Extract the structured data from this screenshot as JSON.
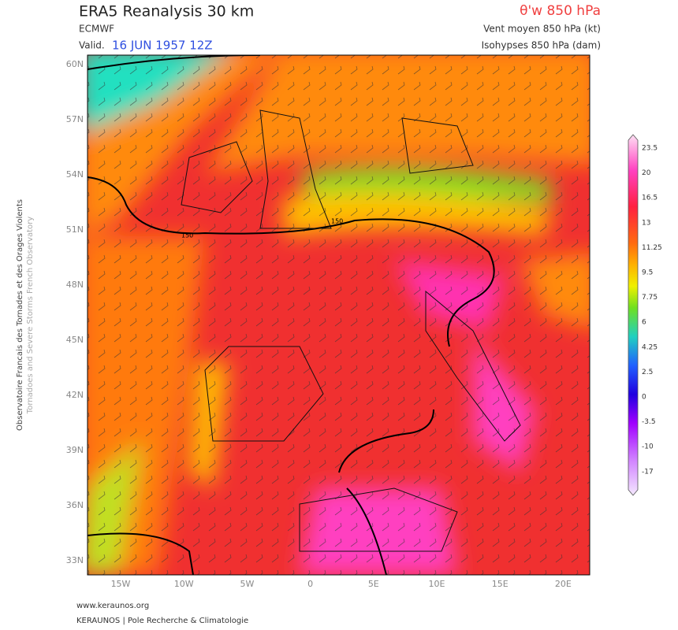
{
  "header": {
    "title": "ERA5 Reanalysis 30 km",
    "source": "ECMWF",
    "valid_prefix": "Valid.",
    "valid_date": "16 JUN 1957 12Z",
    "parameter": "θ'w 850 hPa",
    "wind": "Vent moyen 850 hPa (kt)",
    "isohypses": "Isohypses 850 hPa (dam)"
  },
  "map": {
    "lat_labels": [
      "60N",
      "57N",
      "54N",
      "51N",
      "48N",
      "45N",
      "42N",
      "39N",
      "36N",
      "33N"
    ],
    "lon_labels": [
      "15W",
      "10W",
      "5W",
      "0",
      "5E",
      "10E",
      "15E",
      "20E"
    ],
    "contour_labels": [
      "150",
      "150"
    ]
  },
  "colorbar": {
    "labels": [
      "23.5",
      "20",
      "16.5",
      "13",
      "11.25",
      "9.5",
      "7.75",
      "6",
      "4.25",
      "2.5",
      "0",
      "-3.5",
      "-10",
      "-17"
    ]
  },
  "side": {
    "fr": "Observatoire Francais des Tornades et des Orages Violents",
    "en": "Tornadoes and Severe Storms French Observatory"
  },
  "footer": {
    "url": "www.keraunos.org",
    "org": "KERAUNOS | Pole Recherche & Climatologie"
  }
}
